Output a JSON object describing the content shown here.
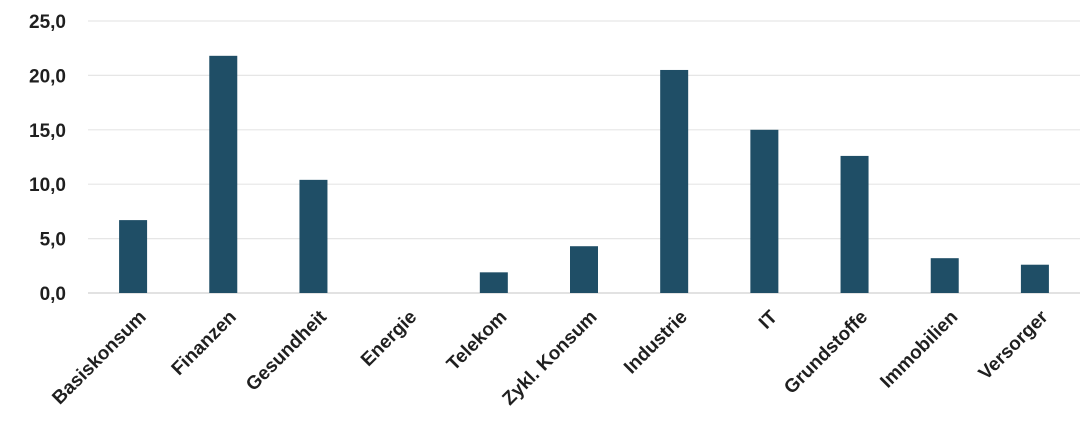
{
  "chart_data": {
    "type": "bar",
    "title": "",
    "xlabel": "",
    "ylabel": "",
    "categories": [
      "Basiskonsum",
      "Finanzen",
      "Gesundheit",
      "Energie",
      "Telekom",
      "Zykl. Konsum",
      "Industrie",
      "IT",
      "Grundstoffe",
      "Immobilien",
      "Versorger"
    ],
    "values": [
      6.7,
      21.8,
      10.4,
      0.0,
      1.9,
      4.3,
      20.5,
      15.0,
      12.6,
      3.2,
      2.6
    ],
    "ylim": [
      0,
      25
    ],
    "yticks": [
      0,
      5,
      10,
      15,
      20,
      25
    ],
    "ytick_labels": [
      "0,0",
      "5,0",
      "10,0",
      "15,0",
      "20,0",
      "25,0"
    ],
    "grid": true,
    "legend": "none",
    "bar_color": "#1f4e66",
    "grid_color": "#e6e6e6"
  }
}
